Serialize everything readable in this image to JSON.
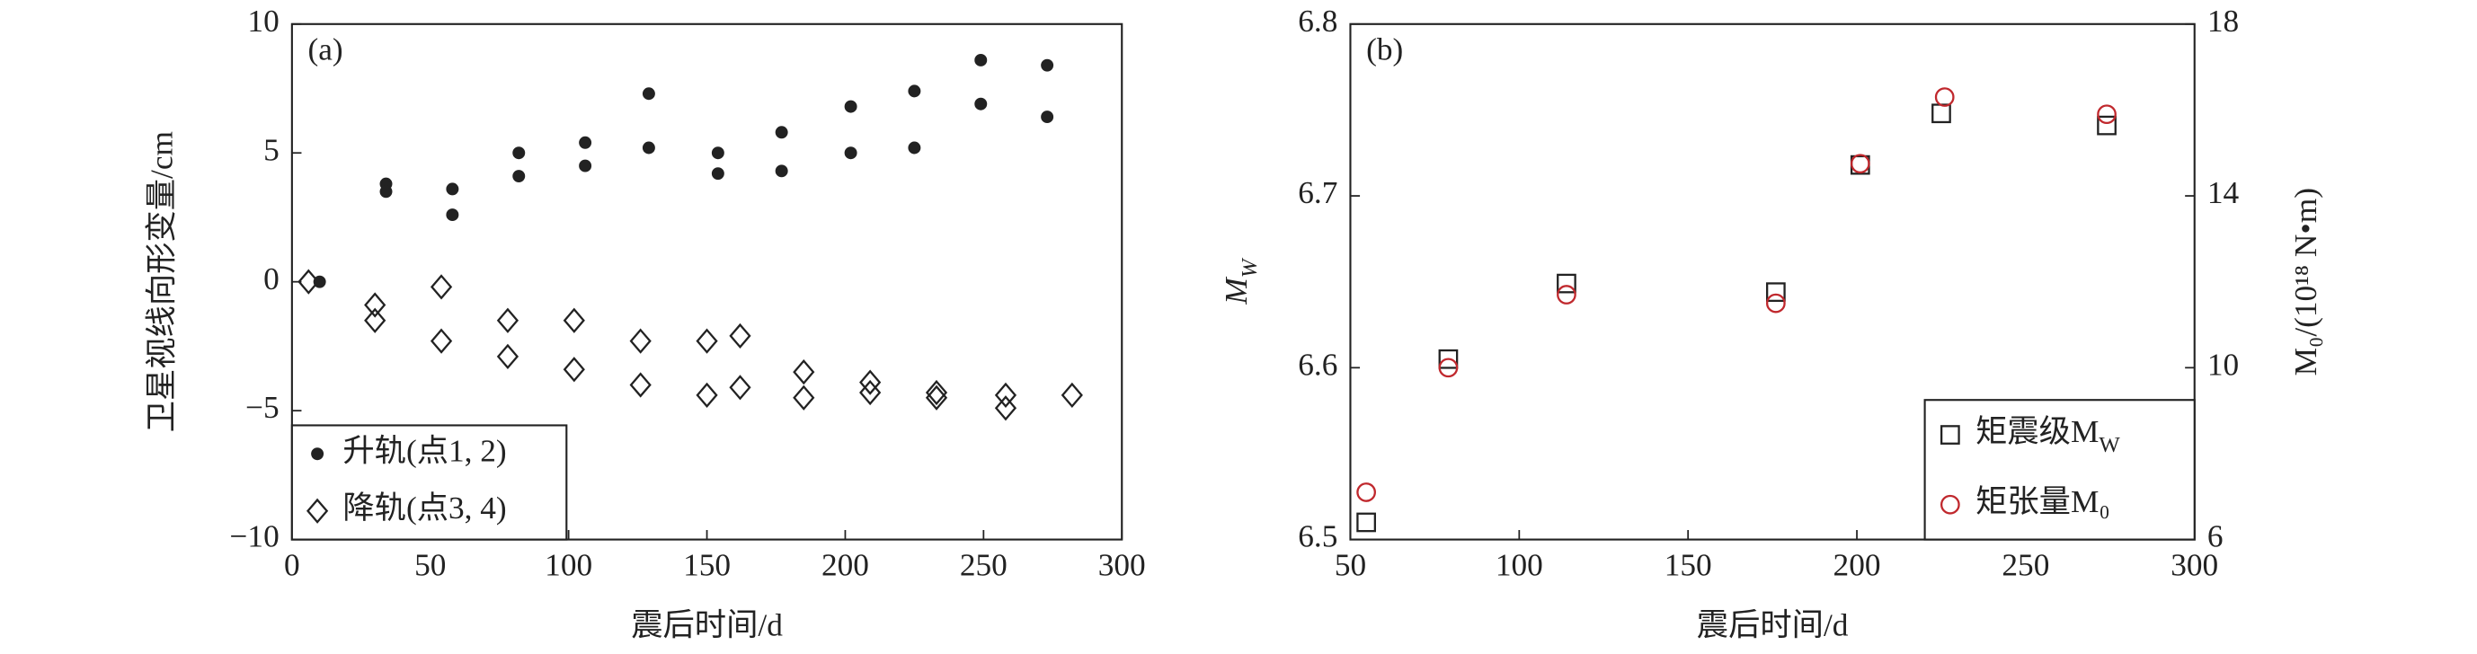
{
  "chart_data": [
    {
      "type": "scatter",
      "annotation": "(a)",
      "xlabel": "震后时间/d",
      "ylabel": "卫星视线向形变量/cm",
      "xlim": [
        0,
        300
      ],
      "xticks": [
        0,
        50,
        100,
        150,
        200,
        250,
        300
      ],
      "ylim": [
        -10,
        10
      ],
      "yticks": [
        {
          "value": -10,
          "label": "−10"
        },
        {
          "value": -5,
          "label": "−5"
        },
        0,
        5,
        10
      ],
      "legend": "lower left",
      "series": [
        {
          "name": "升轨(点1, 2)",
          "color": "#222222",
          "marker": "dot",
          "x": [
            10,
            34,
            34,
            58,
            58,
            82,
            82,
            106,
            106,
            129,
            129,
            154,
            154,
            177,
            177,
            202,
            202,
            225,
            225,
            249,
            249,
            273,
            273
          ],
          "values": [
            0,
            3.8,
            3.5,
            3.6,
            2.6,
            5.0,
            4.1,
            5.4,
            4.5,
            7.3,
            5.2,
            5.0,
            4.2,
            5.8,
            4.3,
            6.8,
            5.0,
            7.4,
            5.2,
            8.6,
            6.9,
            8.4,
            6.4
          ]
        },
        {
          "name": "降轨(点3, 4)",
          "color": "#222222",
          "marker": "diamond",
          "x": [
            6,
            30,
            30,
            54,
            54,
            78,
            78,
            102,
            102,
            126,
            126,
            150,
            150,
            162,
            162,
            185,
            185,
            209,
            209,
            233,
            233,
            258,
            258,
            282
          ],
          "values": [
            0,
            -0.9,
            -1.5,
            -0.2,
            -2.3,
            -1.5,
            -2.9,
            -1.5,
            -3.4,
            -2.3,
            -4.0,
            -2.3,
            -4.4,
            -2.1,
            -4.1,
            -3.5,
            -4.5,
            -3.9,
            -4.3,
            -4.3,
            -4.5,
            -4.4,
            -4.9,
            -4.4
          ]
        }
      ]
    },
    {
      "type": "scatter",
      "annotation": "(b)",
      "xlabel": "震后时间/d",
      "ylabel": "MW",
      "y2label": "M₀/(10¹⁸ N•m)",
      "xlim": [
        50,
        300
      ],
      "xticks": [
        50,
        100,
        150,
        200,
        250,
        300
      ],
      "ylim": [
        6.5,
        6.8
      ],
      "yticks": [
        6.5,
        6.6,
        6.7,
        6.8
      ],
      "y2lim": [
        6,
        18
      ],
      "y2ticks": [
        6,
        10,
        14,
        18
      ],
      "legend": "lower right",
      "series": [
        {
          "name": "矩震级MW",
          "color": "#222222",
          "marker": "square",
          "x": [
            54.7,
            79,
            114,
            176,
            201,
            225,
            274
          ],
          "values": [
            6.51,
            6.605,
            6.649,
            6.644,
            6.718,
            6.748,
            6.741
          ]
        },
        {
          "name": "矩张量M₀",
          "color": "#c0282d",
          "marker": "circle",
          "axis": "y2",
          "x": [
            54.7,
            79,
            114,
            176,
            201,
            226,
            274
          ],
          "values": [
            7.1,
            10.0,
            11.7,
            11.5,
            14.75,
            16.3,
            15.9
          ]
        }
      ]
    }
  ]
}
